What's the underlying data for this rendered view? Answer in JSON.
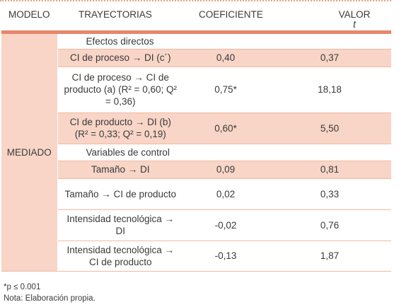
{
  "headers": {
    "col1": "MODELO",
    "col2": "TRAYECTORIAS",
    "col3": "COEFICIENTE",
    "col4": "VALOR",
    "col4_sub": "t"
  },
  "model": "MEDIADO",
  "rows": [
    {
      "label": "Efectos directos",
      "coef": "",
      "t": ""
    },
    {
      "label": "CI de proceso → DI (c´)",
      "coef": "0,40",
      "t": "0,37"
    },
    {
      "label": "CI de proceso → CI de producto (a) (R² = 0,60; Q² = 0,36)",
      "coef": "0,75*",
      "t": "18,18"
    },
    {
      "label": "CI de producto → DI (b) (R² = 0,33; Q² = 0,19)",
      "coef": "0,60*",
      "t": "5,50"
    },
    {
      "label": "Variables de control",
      "coef": "",
      "t": ""
    },
    {
      "label": "Tamaño → DI",
      "coef": "0,09",
      "t": "0,81"
    },
    {
      "label": "Tamaño → CI de producto",
      "coef": "0,02",
      "t": "0,33"
    },
    {
      "label": "Intensidad tecnológica → DI",
      "coef": "-0,02",
      "t": "0,76"
    },
    {
      "label": "Intensidad tecnológica → CI de producto",
      "coef": "-0,13",
      "t": "1,87"
    }
  ],
  "notes": {
    "significance": "*p ≤ 0.001",
    "source": "Nota: Elaboración propia."
  }
}
